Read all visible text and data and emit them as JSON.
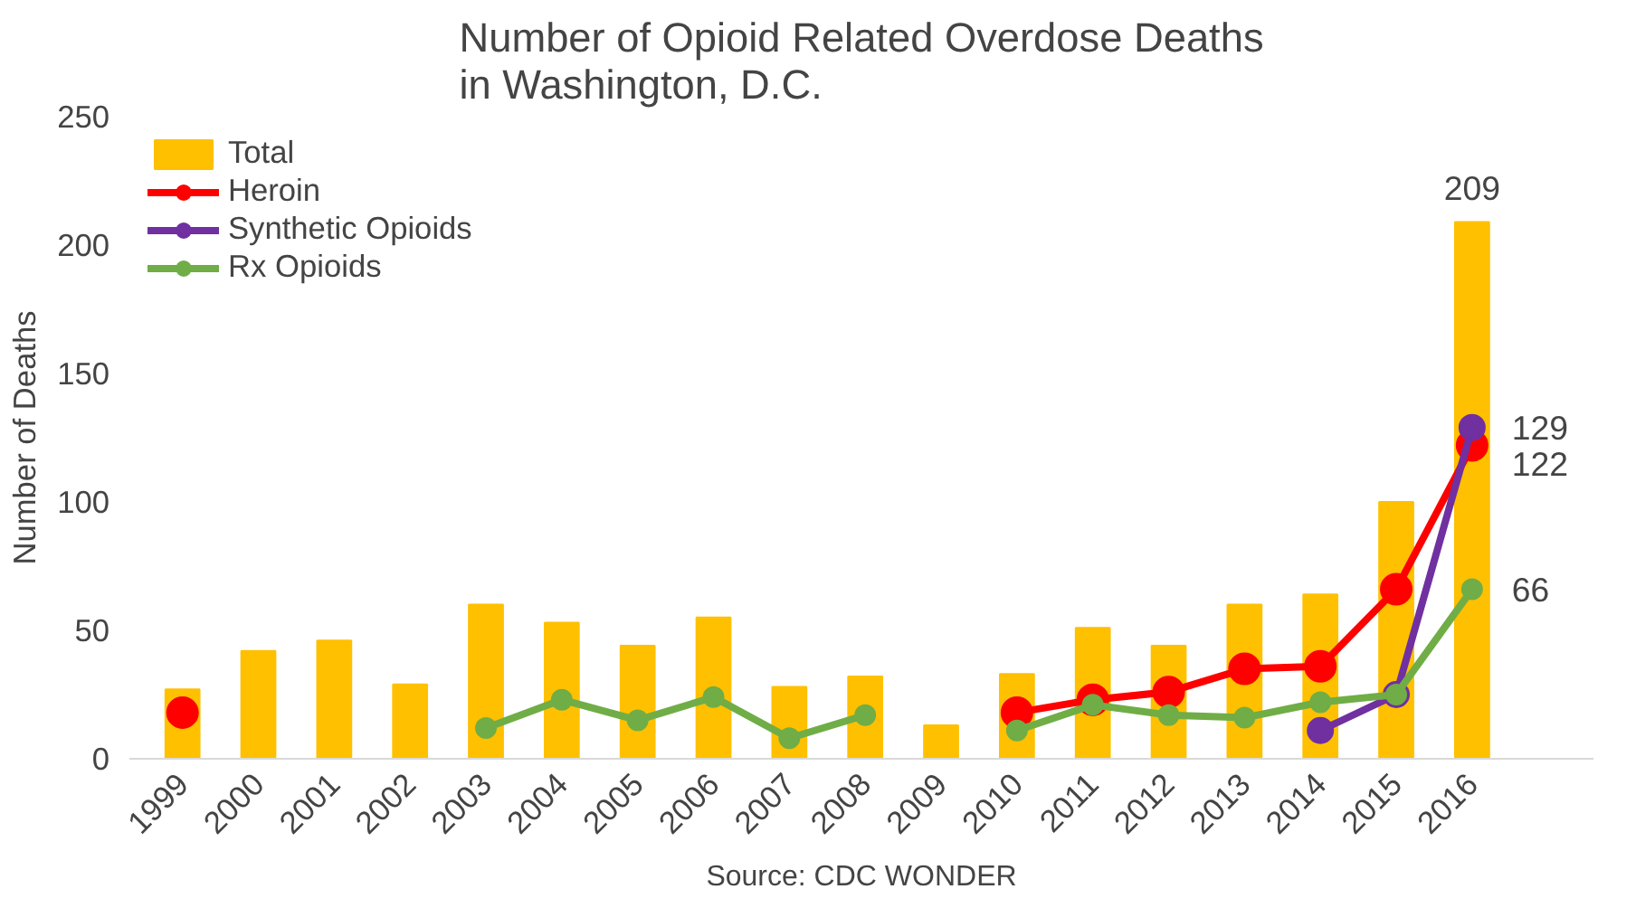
{
  "chart_data": {
    "type": "bar",
    "title": "Number of Opioid Related Overdose Deaths\nin Washington, D.C.",
    "ylabel": "Number of Deaths",
    "categories": [
      "1999",
      "2000",
      "2001",
      "2002",
      "2003",
      "2004",
      "2005",
      "2006",
      "2007",
      "2008",
      "2009",
      "2010",
      "2011",
      "2012",
      "2013",
      "2014",
      "2015",
      "2016"
    ],
    "series": [
      {
        "name": "Total",
        "color": "#ffc000",
        "values": [
          27,
          42,
          46,
          29,
          60,
          53,
          44,
          55,
          28,
          32,
          13,
          33,
          51,
          44,
          60,
          64,
          100,
          209
        ],
        "value_labels": [
          null,
          null,
          null,
          null,
          null,
          null,
          null,
          null,
          null,
          null,
          null,
          null,
          null,
          null,
          null,
          null,
          null,
          "209"
        ]
      },
      {
        "name": "Heroin",
        "type": "line",
        "color": "#ff0000",
        "values": [
          18,
          null,
          null,
          null,
          null,
          null,
          null,
          null,
          null,
          null,
          null,
          18,
          23,
          26,
          35,
          36,
          66,
          122
        ],
        "value_labels": [
          null,
          null,
          null,
          null,
          null,
          null,
          null,
          null,
          null,
          null,
          null,
          null,
          null,
          null,
          null,
          null,
          null,
          "122"
        ]
      },
      {
        "name": "Synthetic Opioids",
        "type": "line",
        "color": "#7030a0",
        "values": [
          null,
          null,
          null,
          null,
          null,
          null,
          null,
          null,
          null,
          null,
          null,
          null,
          null,
          null,
          null,
          11,
          25,
          129
        ],
        "value_labels": [
          null,
          null,
          null,
          null,
          null,
          null,
          null,
          null,
          null,
          null,
          null,
          null,
          null,
          null,
          null,
          null,
          null,
          "129"
        ]
      },
      {
        "name": "Rx Opioids",
        "type": "line",
        "color": "#70ad47",
        "values": [
          null,
          null,
          null,
          null,
          12,
          23,
          15,
          24,
          8,
          17,
          null,
          11,
          21,
          17,
          16,
          22,
          25,
          66
        ],
        "value_labels": [
          null,
          null,
          null,
          null,
          null,
          null,
          null,
          null,
          null,
          null,
          null,
          null,
          null,
          null,
          null,
          null,
          null,
          "66"
        ]
      }
    ],
    "ylim": [
      0,
      250
    ],
    "yticks": [
      0,
      50,
      100,
      150,
      200,
      250
    ],
    "grid": false,
    "legend": "top left",
    "marker": "circle",
    "annotations": [
      "Source: CDC WONDER"
    ]
  }
}
